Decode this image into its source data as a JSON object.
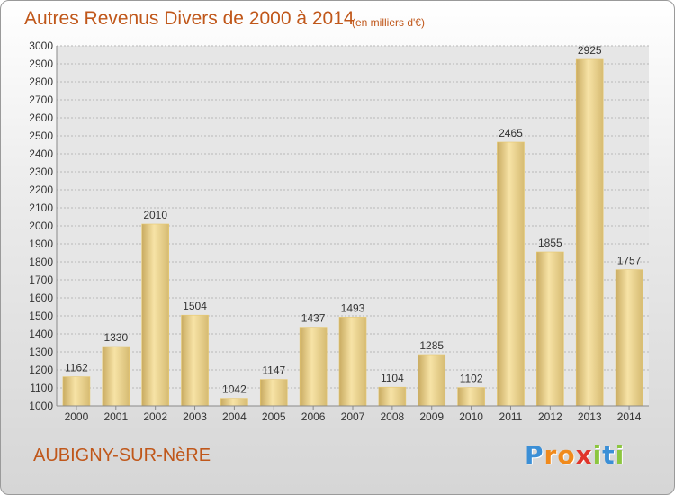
{
  "title": "Autres Revenus Divers de 2000 à 2014",
  "subtitle": "(en milliers d'€)",
  "commune": "AUBIGNY-SUR-NèRE",
  "logo": {
    "text": "Proxiti",
    "letters": [
      {
        "char": "P",
        "color": "#3b8fd6"
      },
      {
        "char": "r",
        "color": "#f08a1c"
      },
      {
        "char": "o",
        "color": "#f08a1c"
      },
      {
        "char": "x",
        "color": "#e0352b"
      },
      {
        "char": "i",
        "color": "#8cc63f"
      },
      {
        "char": "t",
        "color": "#3b8fd6"
      },
      {
        "char": "i",
        "color": "#8cc63f"
      }
    ]
  },
  "colors": {
    "title": "#c0571a",
    "bar_light": "#f7e3a6",
    "bar_dark": "#c9ab61",
    "grid": "#b8b8b8",
    "plot_bg": "#e6e6e6"
  },
  "chart_data": {
    "type": "bar",
    "title": "Autres Revenus Divers de 2000 à 2014",
    "subtitle": "(en milliers d'€)",
    "xlabel": "",
    "ylabel": "",
    "categories": [
      "2000",
      "2001",
      "2002",
      "2003",
      "2004",
      "2005",
      "2006",
      "2007",
      "2008",
      "2009",
      "2010",
      "2011",
      "2012",
      "2013",
      "2014"
    ],
    "values": [
      1162,
      1330,
      2010,
      1504,
      1042,
      1147,
      1437,
      1493,
      1104,
      1285,
      1102,
      2465,
      1855,
      2925,
      1757
    ],
    "ylim": [
      1000,
      3000
    ],
    "yticks": [
      1000,
      1100,
      1200,
      1300,
      1400,
      1500,
      1600,
      1700,
      1800,
      1900,
      2000,
      2100,
      2200,
      2300,
      2400,
      2500,
      2600,
      2700,
      2800,
      2900,
      3000
    ],
    "grid": true,
    "data_labels": true
  }
}
